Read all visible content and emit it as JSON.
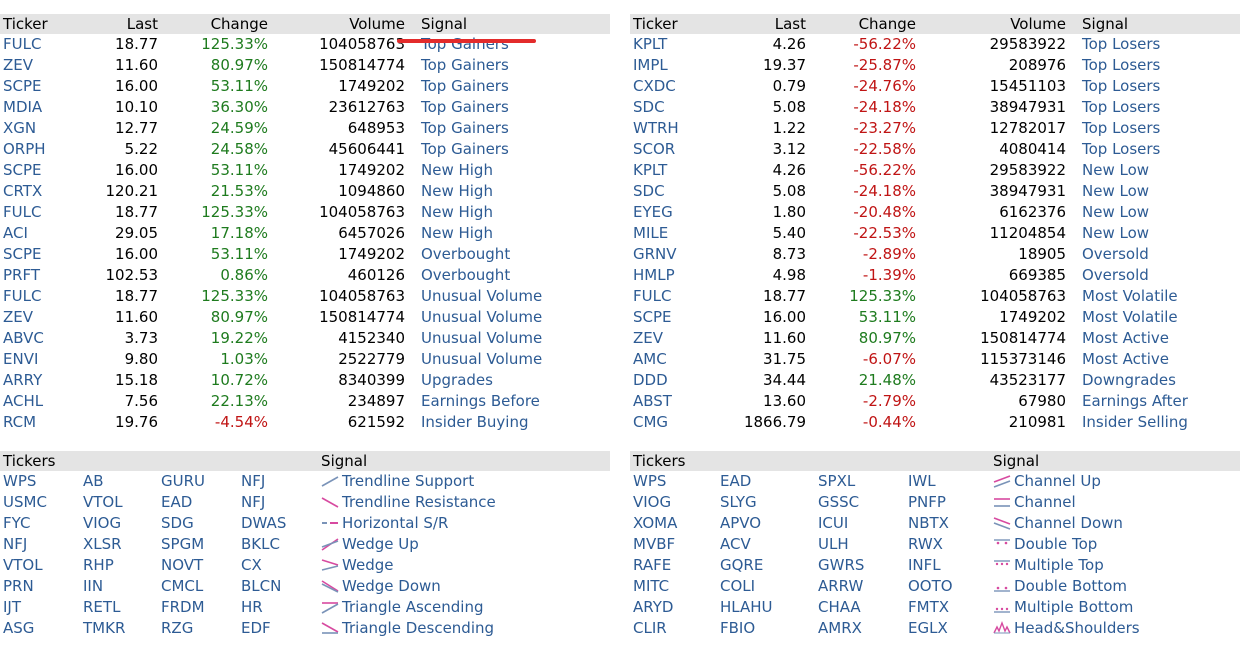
{
  "top_left": {
    "headers": [
      "Ticker",
      "Last",
      "Change",
      "Volume",
      "Signal"
    ],
    "rows": [
      [
        "FULC",
        "18.77",
        "125.33%",
        "104058763",
        "Top Gainers"
      ],
      [
        "ZEV",
        "11.60",
        "80.97%",
        "150814774",
        "Top Gainers"
      ],
      [
        "SCPE",
        "16.00",
        "53.11%",
        "1749202",
        "Top Gainers"
      ],
      [
        "MDIA",
        "10.10",
        "36.30%",
        "23612763",
        "Top Gainers"
      ],
      [
        "XGN",
        "12.77",
        "24.59%",
        "648953",
        "Top Gainers"
      ],
      [
        "ORPH",
        "5.22",
        "24.58%",
        "45606441",
        "Top Gainers"
      ],
      [
        "SCPE",
        "16.00",
        "53.11%",
        "1749202",
        "New High"
      ],
      [
        "CRTX",
        "120.21",
        "21.53%",
        "1094860",
        "New High"
      ],
      [
        "FULC",
        "18.77",
        "125.33%",
        "104058763",
        "New High"
      ],
      [
        "ACI",
        "29.05",
        "17.18%",
        "6457026",
        "New High"
      ],
      [
        "SCPE",
        "16.00",
        "53.11%",
        "1749202",
        "Overbought"
      ],
      [
        "PRFT",
        "102.53",
        "0.86%",
        "460126",
        "Overbought"
      ],
      [
        "FULC",
        "18.77",
        "125.33%",
        "104058763",
        "Unusual Volume"
      ],
      [
        "ZEV",
        "11.60",
        "80.97%",
        "150814774",
        "Unusual Volume"
      ],
      [
        "ABVC",
        "3.73",
        "19.22%",
        "4152340",
        "Unusual Volume"
      ],
      [
        "ENVI",
        "9.80",
        "1.03%",
        "2522779",
        "Unusual Volume"
      ],
      [
        "ARRY",
        "15.18",
        "10.72%",
        "8340399",
        "Upgrades"
      ],
      [
        "ACHL",
        "7.56",
        "22.13%",
        "234897",
        "Earnings Before"
      ],
      [
        "RCM",
        "19.76",
        "-4.54%",
        "621592",
        "Insider Buying"
      ]
    ]
  },
  "top_right": {
    "headers": [
      "Ticker",
      "Last",
      "Change",
      "Volume",
      "Signal"
    ],
    "rows": [
      [
        "KPLT",
        "4.26",
        "-56.22%",
        "29583922",
        "Top Losers"
      ],
      [
        "IMPL",
        "19.37",
        "-25.87%",
        "208976",
        "Top Losers"
      ],
      [
        "CXDC",
        "0.79",
        "-24.76%",
        "15451103",
        "Top Losers"
      ],
      [
        "SDC",
        "5.08",
        "-24.18%",
        "38947931",
        "Top Losers"
      ],
      [
        "WTRH",
        "1.22",
        "-23.27%",
        "12782017",
        "Top Losers"
      ],
      [
        "SCOR",
        "3.12",
        "-22.58%",
        "4080414",
        "Top Losers"
      ],
      [
        "KPLT",
        "4.26",
        "-56.22%",
        "29583922",
        "New Low"
      ],
      [
        "SDC",
        "5.08",
        "-24.18%",
        "38947931",
        "New Low"
      ],
      [
        "EYEG",
        "1.80",
        "-20.48%",
        "6162376",
        "New Low"
      ],
      [
        "MILE",
        "5.40",
        "-22.53%",
        "11204854",
        "New Low"
      ],
      [
        "GRNV",
        "8.73",
        "-2.89%",
        "18905",
        "Oversold"
      ],
      [
        "HMLP",
        "4.98",
        "-1.39%",
        "669385",
        "Oversold"
      ],
      [
        "FULC",
        "18.77",
        "125.33%",
        "104058763",
        "Most Volatile"
      ],
      [
        "SCPE",
        "16.00",
        "53.11%",
        "1749202",
        "Most Volatile"
      ],
      [
        "ZEV",
        "11.60",
        "80.97%",
        "150814774",
        "Most Active"
      ],
      [
        "AMC",
        "31.75",
        "-6.07%",
        "115373146",
        "Most Active"
      ],
      [
        "DDD",
        "34.44",
        "21.48%",
        "43523177",
        "Downgrades"
      ],
      [
        "ABST",
        "13.60",
        "-2.79%",
        "67980",
        "Earnings After"
      ],
      [
        "CMG",
        "1866.79",
        "-0.44%",
        "210981",
        "Insider Selling"
      ]
    ]
  },
  "bottom_left": {
    "headers": [
      "Tickers",
      "Signal"
    ],
    "rows": [
      {
        "t": [
          "WPS",
          "AB",
          "GURU",
          "NFJ"
        ],
        "icon": "trendline-support",
        "signal": "Trendline Support"
      },
      {
        "t": [
          "USMC",
          "VTOL",
          "EAD",
          "NFJ"
        ],
        "icon": "trendline-resistance",
        "signal": "Trendline Resistance"
      },
      {
        "t": [
          "FYC",
          "VIOG",
          "SDG",
          "DWAS"
        ],
        "icon": "horizontal-sr",
        "signal": "Horizontal S/R"
      },
      {
        "t": [
          "NFJ",
          "XLSR",
          "SPGM",
          "BKLC"
        ],
        "icon": "wedge-up",
        "signal": "Wedge Up"
      },
      {
        "t": [
          "VTOL",
          "RHP",
          "NOVT",
          "CX"
        ],
        "icon": "wedge",
        "signal": "Wedge"
      },
      {
        "t": [
          "PRN",
          "IIN",
          "CMCL",
          "BLCN"
        ],
        "icon": "wedge-down",
        "signal": "Wedge Down"
      },
      {
        "t": [
          "IJT",
          "RETL",
          "FRDM",
          "HR"
        ],
        "icon": "triangle-ascending",
        "signal": "Triangle Ascending"
      },
      {
        "t": [
          "ASG",
          "TMKR",
          "RZG",
          "EDF"
        ],
        "icon": "triangle-descending",
        "signal": "Triangle Descending"
      }
    ]
  },
  "bottom_right": {
    "headers": [
      "Tickers",
      "Signal"
    ],
    "rows": [
      {
        "t": [
          "WPS",
          "EAD",
          "SPXL",
          "IWL"
        ],
        "icon": "channel-up",
        "signal": "Channel Up"
      },
      {
        "t": [
          "VIOG",
          "SLYG",
          "GSSC",
          "PNFP"
        ],
        "icon": "channel",
        "signal": "Channel"
      },
      {
        "t": [
          "XOMA",
          "APVO",
          "ICUI",
          "NBTX"
        ],
        "icon": "channel-down",
        "signal": "Channel Down"
      },
      {
        "t": [
          "MVBF",
          "ACV",
          "ULH",
          "RWX"
        ],
        "icon": "double-top",
        "signal": "Double Top"
      },
      {
        "t": [
          "RAFE",
          "GQRE",
          "GWRS",
          "INFL"
        ],
        "icon": "multiple-top",
        "signal": "Multiple Top"
      },
      {
        "t": [
          "MITC",
          "COLI",
          "ARRW",
          "OOTO"
        ],
        "icon": "double-bottom",
        "signal": "Double Bottom"
      },
      {
        "t": [
          "ARYD",
          "HLAHU",
          "CHAA",
          "FMTX"
        ],
        "icon": "multiple-bottom",
        "signal": "Multiple Bottom"
      },
      {
        "t": [
          "CLIR",
          "FBIO",
          "AMRX",
          "EGLX"
        ],
        "icon": "head-shoulders",
        "signal": "Head&Shoulders"
      }
    ]
  },
  "colors": {
    "link": "#2d5b94",
    "positive": "#1e7b1e",
    "negative": "#c01414",
    "header_bg": "#e4e4e4",
    "annotation": "#e32b2b"
  }
}
